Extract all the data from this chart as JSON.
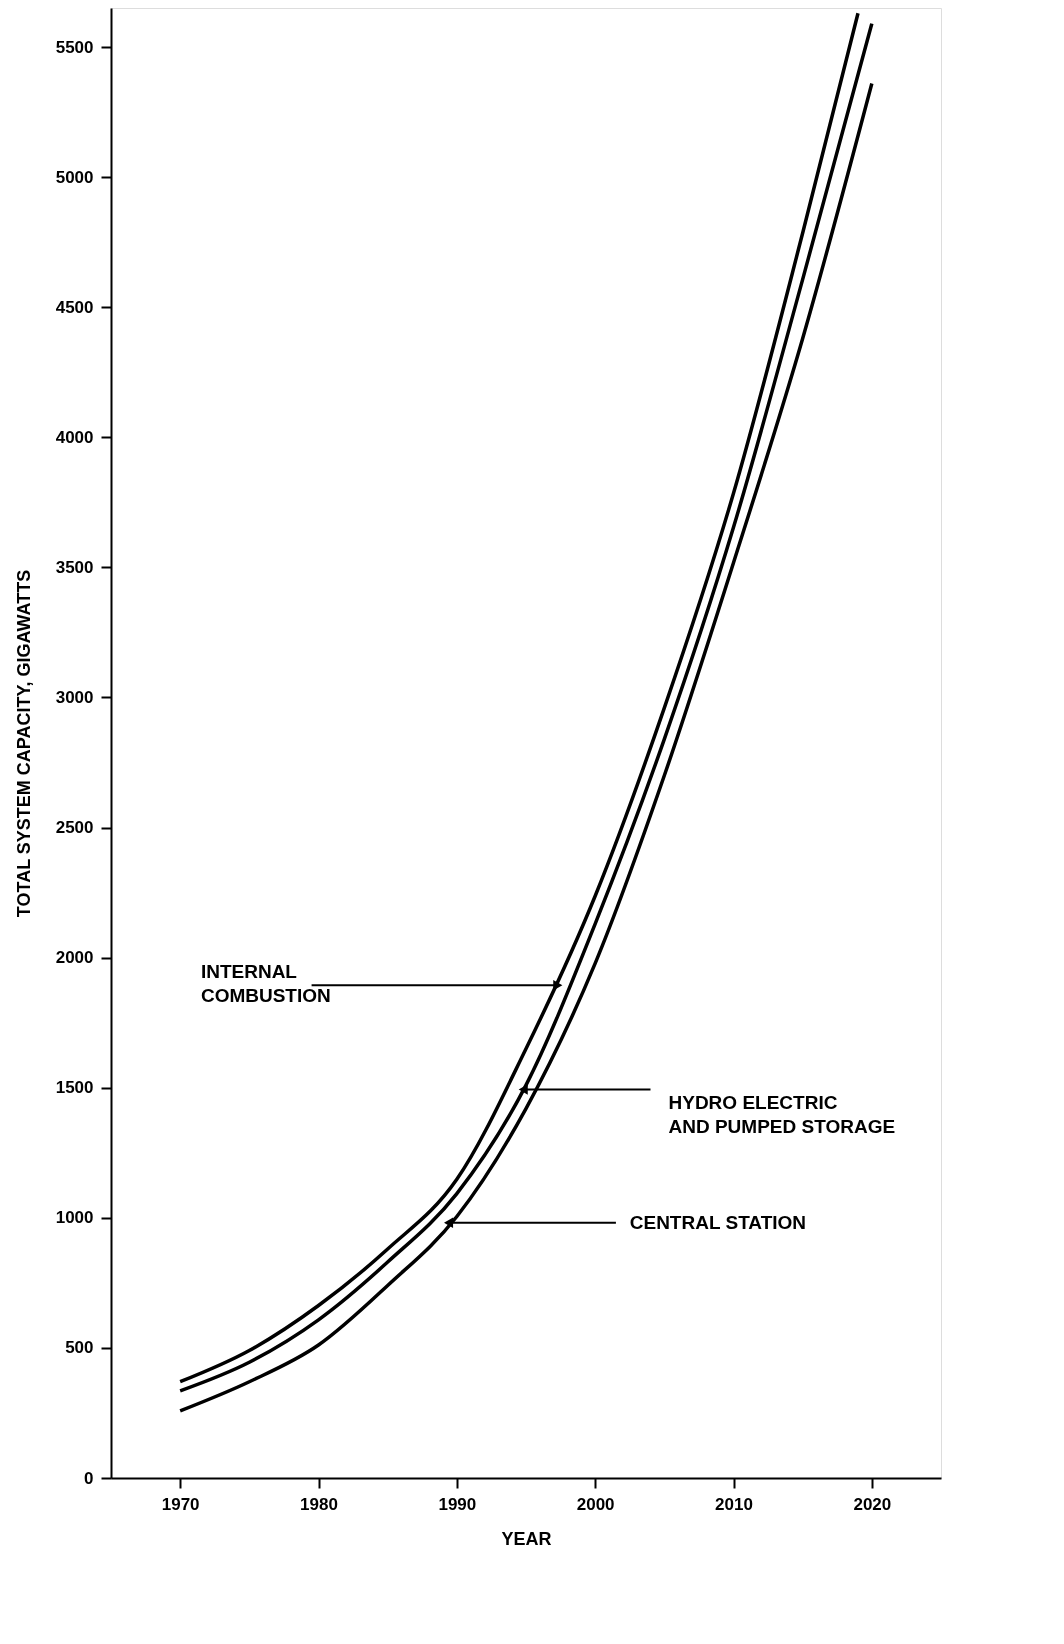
{
  "chart_data": {
    "type": "line",
    "xlabel": "YEAR",
    "ylabel": "TOTAL SYSTEM CAPACITY, GIGAWATTS",
    "xlim": [
      1965,
      2025
    ],
    "xticks": [
      1970,
      1980,
      1990,
      2000,
      2010,
      2020
    ],
    "ylim": [
      0,
      5650
    ],
    "yticks": [
      0,
      500,
      1000,
      1500,
      2000,
      2500,
      3000,
      3500,
      4000,
      4500,
      5000,
      5500
    ],
    "grid": false,
    "marker": "none",
    "line_style": "solid",
    "annotations": [
      {
        "text": "INTERNAL\nCOMBUSTION",
        "x": 1997.3,
        "y": 1894
      },
      {
        "text": "HYDRO ELECTRIC\nAND PUMPED STORAGE",
        "x": 1994.8,
        "y": 1493
      },
      {
        "text": "CENTRAL STATION",
        "x": 1989.4,
        "y": 981
      }
    ],
    "series": [
      {
        "color": "#000000",
        "x": [
          1970,
          1975,
          1980,
          1985,
          1990,
          1995,
          2000,
          2005,
          2010,
          2015,
          2019
        ],
        "values": [
          370,
          490,
          663,
          880,
          1148,
          1650,
          2237,
          2960,
          3785,
          4785,
          5630
        ]
      },
      {
        "color": "#000000",
        "x": [
          1970,
          1975,
          1980,
          1985,
          1990,
          1995,
          2000,
          2005,
          2010,
          2015,
          2020
        ],
        "values": [
          335,
          445,
          608,
          830,
          1093,
          1510,
          2130,
          2840,
          3654,
          4607,
          5590
        ]
      },
      {
        "color": "#000000",
        "x": [
          1970,
          1975,
          1980,
          1985,
          1990,
          1995,
          2000,
          2005,
          2010,
          2015,
          2020
        ],
        "values": [
          258,
          370,
          511,
          740,
          1005,
          1420,
          1978,
          2700,
          3518,
          4380,
          5360
        ]
      }
    ]
  }
}
